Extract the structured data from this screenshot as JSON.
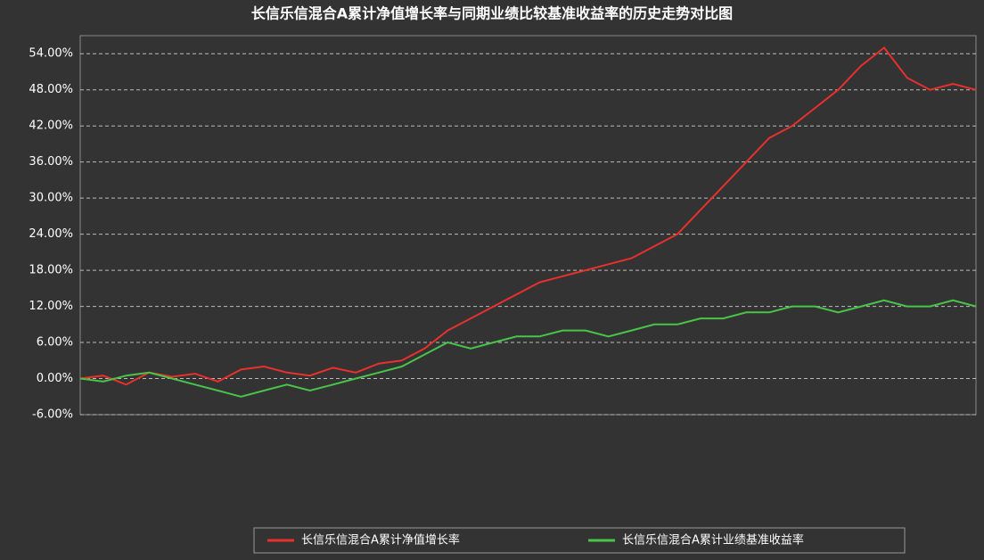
{
  "chart_data": {
    "type": "line",
    "title": "长信乐信混合A累计净值增长率与同期业绩比较基准收益率的历史走势对比图",
    "categories": [
      null,
      null,
      null,
      null,
      null,
      null,
      null,
      null,
      null,
      null,
      null,
      null,
      null,
      null,
      null,
      null,
      null,
      null,
      null,
      null,
      null,
      null,
      null,
      null,
      null,
      null,
      null,
      null,
      null,
      null,
      null,
      null,
      null,
      null,
      null,
      null,
      null,
      null,
      null,
      null
    ],
    "series": [
      {
        "name": "长信乐信混合A累计净值增长率",
        "color": "#e8302c",
        "values": [
          0,
          0.5,
          -1,
          1,
          0.3,
          0.8,
          -0.5,
          1.5,
          2,
          1,
          0.5,
          1.8,
          1,
          2.5,
          3,
          5,
          8,
          10,
          12,
          14,
          16,
          17,
          18,
          19,
          20,
          22,
          24,
          28,
          32,
          36,
          40,
          42,
          45,
          48,
          52,
          55,
          50,
          48,
          49,
          48
        ]
      },
      {
        "name": "长信乐信混合A累计业绩基准收益率",
        "color": "#48c448",
        "values": [
          0,
          -0.5,
          0.5,
          1,
          0,
          -1,
          -2,
          -3,
          -2,
          -1,
          -2,
          -1,
          0,
          1,
          2,
          4,
          6,
          5,
          6,
          7,
          7,
          8,
          8,
          7,
          8,
          9,
          9,
          10,
          10,
          11,
          11,
          12,
          12,
          11,
          12,
          13,
          12,
          12,
          13,
          12
        ]
      }
    ],
    "ylim": [
      -6,
      57
    ],
    "yticks": [
      {
        "value": -6,
        "label": "-6.00%"
      },
      {
        "value": 0,
        "label": "0.00%"
      },
      {
        "value": 6,
        "label": "6.00%"
      },
      {
        "value": 12,
        "label": "12.00%"
      },
      {
        "value": 18,
        "label": "18.00%"
      },
      {
        "value": 24,
        "label": "24.00%"
      },
      {
        "value": 30,
        "label": "30.00%"
      },
      {
        "value": 36,
        "label": "36.00%"
      },
      {
        "value": 42,
        "label": "42.00%"
      },
      {
        "value": 48,
        "label": "48.00%"
      },
      {
        "value": 54,
        "label": "54.00%"
      }
    ],
    "grid": true
  }
}
